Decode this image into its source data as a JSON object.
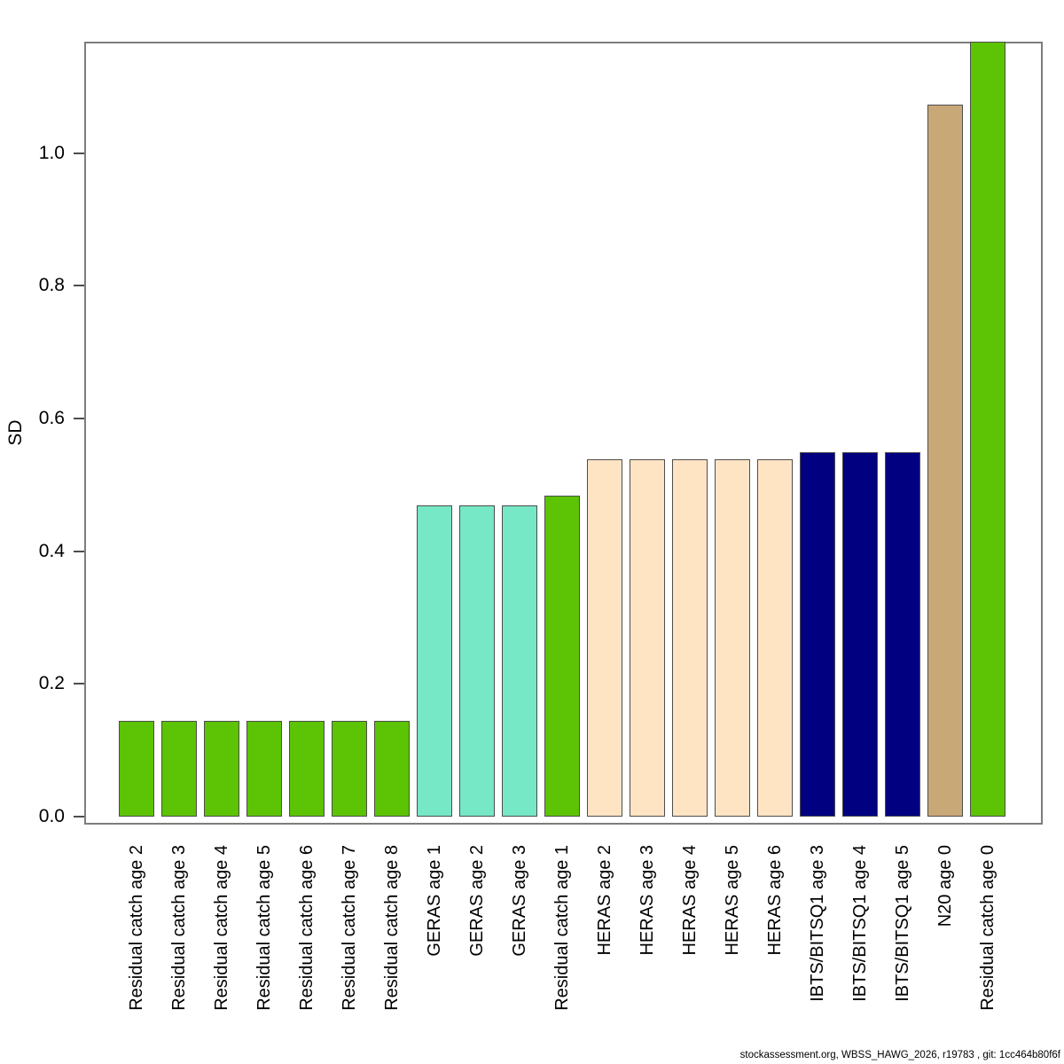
{
  "meta": {
    "footer": "stockassessment.org, WBSS_HAWG_2026, r19783 , git: 1cc464b80f6f"
  },
  "chart_data": {
    "type": "bar",
    "title": "",
    "xlabel": "",
    "ylabel": "SD",
    "ylim": [
      0,
      1.168
    ],
    "yticks": [
      0.0,
      0.2,
      0.4,
      0.6,
      0.8,
      1.0
    ],
    "grid": false,
    "legend": "none",
    "categories": [
      "Residual catch age 2",
      "Residual catch age 3",
      "Residual catch age 4",
      "Residual catch age 5",
      "Residual catch age 6",
      "Residual catch age 7",
      "Residual catch age 8",
      "GERAS age 1",
      "GERAS age 2",
      "GERAS age 3",
      "Residual catch age 1",
      "HERAS age 2",
      "HERAS age 3",
      "HERAS age 4",
      "HERAS age 5",
      "HERAS age 6",
      "IBTS/BITSQ1 age 3",
      "IBTS/BITSQ1 age 4",
      "IBTS/BITSQ1 age 5",
      "N20 age 0",
      "Residual catch age 0"
    ],
    "values": [
      0.144,
      0.144,
      0.144,
      0.144,
      0.144,
      0.144,
      0.144,
      0.469,
      0.469,
      0.469,
      0.484,
      0.538,
      0.538,
      0.538,
      0.538,
      0.538,
      0.549,
      0.549,
      0.549,
      1.073,
      1.168
    ],
    "groups": [
      "residual_catch",
      "residual_catch",
      "residual_catch",
      "residual_catch",
      "residual_catch",
      "residual_catch",
      "residual_catch",
      "geras",
      "geras",
      "geras",
      "residual_catch",
      "heras",
      "heras",
      "heras",
      "heras",
      "heras",
      "ibts_bitsq1",
      "ibts_bitsq1",
      "ibts_bitsq1",
      "n20",
      "residual_catch"
    ],
    "group_colors": {
      "residual_catch": "#5cc305",
      "geras": "#76e8c5",
      "heras": "#ffe4c4",
      "ibts_bitsq1": "#000080",
      "n20": "#c9a877"
    }
  },
  "style_colors": {
    "bar_border": "#4d4d4d",
    "box_border": "#7d7d7d",
    "tick": "#4d4d4d",
    "text": "#000000",
    "background": "#ffffff"
  }
}
